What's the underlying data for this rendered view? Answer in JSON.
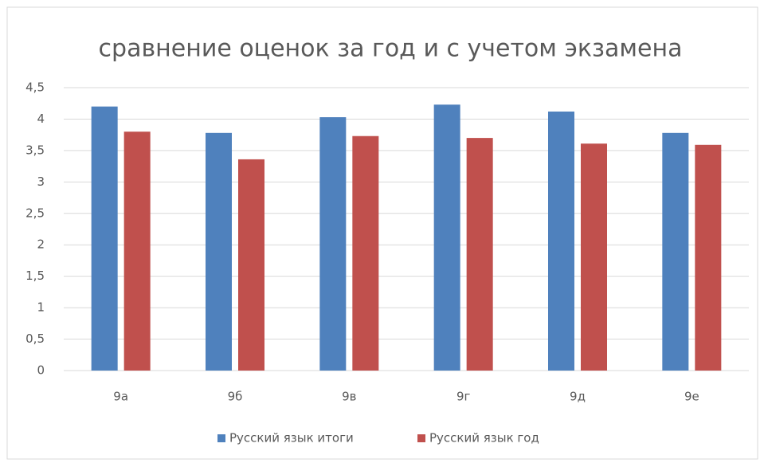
{
  "chart_data": {
    "type": "bar",
    "title": "сравнение оценок за год и с учетом экзамена",
    "categories": [
      "9а",
      "9б",
      "9в",
      "9г",
      "9д",
      "9е"
    ],
    "series": [
      {
        "name": "Русский язык итоги",
        "color": "#4f81bd",
        "values": [
          4.2,
          3.78,
          4.03,
          4.23,
          4.12,
          3.78
        ]
      },
      {
        "name": "Русский язык год",
        "color": "#c0504d",
        "values": [
          3.8,
          3.36,
          3.73,
          3.7,
          3.61,
          3.59
        ]
      }
    ],
    "ylim": [
      0,
      4.5
    ],
    "yticks": [
      0,
      {
        "value": 0.5,
        "label": "0,5"
      },
      1,
      {
        "value": 1.5,
        "label": "1,5"
      },
      2,
      {
        "value": 2.5,
        "label": "2,5"
      },
      3,
      {
        "value": 3.5,
        "label": "3,5"
      },
      4,
      {
        "value": 4.5,
        "label": "4,5"
      }
    ],
    "grid": true,
    "legend": "bottom"
  }
}
